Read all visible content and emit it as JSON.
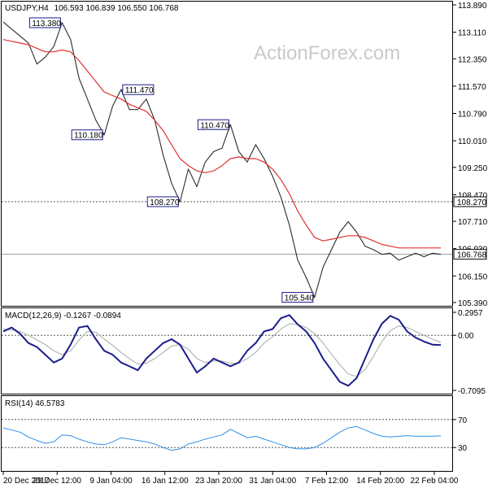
{
  "header": {
    "symbol": "USDJPY,H4",
    "ohlc": "106.593 106.839 106.550 106.768",
    "watermark": "ActionForex.com"
  },
  "colors": {
    "price": "#2b2b2b",
    "ma": "#e03030",
    "macd_line": "#1c1c8c",
    "signal": "#b0b0b0",
    "rsi": "#2f8fe6",
    "annotation_border": "#1c1c8c",
    "grid_dotted": "#555555"
  },
  "chart_data": [
    {
      "type": "line",
      "panel": "price",
      "y_axis_ticks": [
        "113.890",
        "113.110",
        "112.350",
        "111.570",
        "110.790",
        "110.010",
        "109.250",
        "108.470",
        "107.710",
        "106.930",
        "106.150",
        "105.390"
      ],
      "ylim": [
        105.39,
        113.89
      ],
      "x_tick_labels": [
        "20 Dec 2017",
        "29 Dec 12:00",
        "9 Jan 04:00",
        "16 Jan 12:00",
        "23 Jan 20:00",
        "31 Jan 04:00",
        "7 Feb 12:00",
        "14 Feb 20:00",
        "22 Feb 04:00"
      ],
      "x": [
        0,
        4,
        8,
        12,
        16,
        20,
        24,
        28,
        32,
        36,
        40,
        44,
        48,
        52,
        56,
        60,
        64,
        68,
        72,
        76,
        80,
        84,
        88,
        92,
        96,
        100,
        104,
        108,
        112,
        116,
        120,
        124,
        128,
        132,
        136,
        140,
        144,
        148,
        152,
        156,
        160,
        164,
        168,
        172,
        176,
        180,
        184,
        188,
        192,
        196,
        200,
        204,
        208
      ],
      "series": [
        {
          "name": "price",
          "values": [
            113.4,
            113.2,
            113.0,
            112.8,
            112.2,
            112.4,
            112.7,
            113.38,
            112.9,
            111.8,
            111.2,
            110.6,
            110.18,
            111.0,
            111.47,
            110.9,
            110.9,
            111.2,
            110.6,
            109.6,
            108.8,
            108.27,
            109.2,
            108.7,
            109.4,
            109.7,
            109.8,
            110.47,
            109.7,
            109.4,
            109.9,
            109.5,
            109.0,
            108.4,
            107.6,
            106.6,
            106.1,
            105.54,
            106.4,
            106.9,
            107.4,
            107.7,
            107.4,
            107.0,
            106.9,
            106.768,
            106.8,
            106.6,
            106.7,
            106.8,
            106.7,
            106.8,
            106.768
          ]
        },
        {
          "name": "ma",
          "values": [
            112.9,
            112.85,
            112.8,
            112.75,
            112.65,
            112.55,
            112.55,
            112.6,
            112.55,
            112.3,
            112.0,
            111.7,
            111.4,
            111.3,
            111.2,
            111.05,
            110.95,
            110.85,
            110.6,
            110.3,
            109.9,
            109.5,
            109.3,
            109.15,
            109.1,
            109.15,
            109.3,
            109.5,
            109.55,
            109.5,
            109.5,
            109.4,
            109.2,
            108.9,
            108.5,
            108.0,
            107.6,
            107.25,
            107.15,
            107.2,
            107.25,
            107.3,
            107.3,
            107.25,
            107.15,
            107.05,
            107.0,
            106.95,
            106.95,
            106.95,
            106.95,
            106.95,
            106.95
          ]
        }
      ],
      "current_price": "106.768",
      "reference_level": "108.270",
      "annotations": [
        "113.380",
        "111.470",
        "110.180",
        "110.470",
        "108.270",
        "105.540"
      ]
    },
    {
      "type": "line",
      "panel": "macd",
      "title": "MACD(12,26,9) -0.1267 -0.0894",
      "y_axis_ticks": [
        "0.2957",
        "0.00",
        "-0.7095"
      ],
      "ylim": [
        -0.7095,
        0.2957
      ],
      "series": [
        {
          "name": "macd",
          "values": [
            0.05,
            0.1,
            0.02,
            -0.1,
            -0.15,
            -0.25,
            -0.35,
            -0.3,
            -0.12,
            0.1,
            0.12,
            -0.05,
            -0.2,
            -0.25,
            -0.35,
            -0.4,
            -0.45,
            -0.3,
            -0.2,
            -0.1,
            -0.05,
            -0.12,
            -0.3,
            -0.48,
            -0.4,
            -0.3,
            -0.35,
            -0.4,
            -0.35,
            -0.2,
            -0.1,
            0.05,
            0.08,
            0.22,
            0.26,
            0.14,
            0.05,
            -0.1,
            -0.3,
            -0.45,
            -0.6,
            -0.65,
            -0.55,
            -0.3,
            -0.05,
            0.15,
            0.25,
            0.2,
            0.05,
            -0.03,
            -0.08,
            -0.12,
            -0.1267
          ]
        },
        {
          "name": "signal",
          "values": [
            0.08,
            0.07,
            0.05,
            0.0,
            -0.06,
            -0.12,
            -0.2,
            -0.25,
            -0.2,
            -0.06,
            0.05,
            0.04,
            -0.05,
            -0.13,
            -0.22,
            -0.3,
            -0.37,
            -0.36,
            -0.3,
            -0.22,
            -0.14,
            -0.12,
            -0.18,
            -0.3,
            -0.35,
            -0.33,
            -0.33,
            -0.36,
            -0.36,
            -0.3,
            -0.22,
            -0.1,
            -0.02,
            0.08,
            0.15,
            0.14,
            0.1,
            0.02,
            -0.1,
            -0.24,
            -0.38,
            -0.5,
            -0.53,
            -0.44,
            -0.27,
            -0.08,
            0.06,
            0.12,
            0.1,
            0.05,
            0.0,
            -0.05,
            -0.0894
          ]
        }
      ]
    },
    {
      "type": "line",
      "panel": "rsi",
      "title": "RSI(14) 46.5783",
      "y_axis_ticks": [
        "70",
        "30"
      ],
      "ylim": [
        0,
        100
      ],
      "series": [
        {
          "name": "rsi",
          "values": [
            58,
            55,
            52,
            45,
            40,
            36,
            38,
            48,
            47,
            42,
            38,
            35,
            34,
            38,
            44,
            42,
            40,
            38,
            35,
            30,
            26,
            28,
            35,
            38,
            42,
            45,
            48,
            56,
            50,
            44,
            46,
            42,
            38,
            34,
            30,
            28,
            28,
            30,
            36,
            44,
            52,
            58,
            60,
            55,
            50,
            46,
            45,
            46,
            47,
            46,
            46,
            46,
            46.5783
          ]
        }
      ]
    }
  ]
}
